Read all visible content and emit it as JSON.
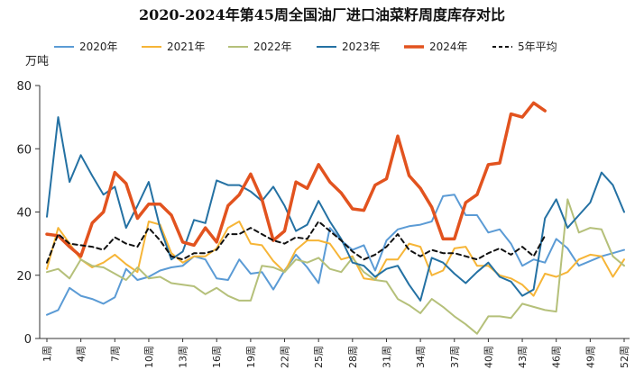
{
  "chart_data": {
    "type": "line",
    "title": "2020-2024年第45周全国油厂进口油菜籽周度库存对比",
    "ylabel": "万吨",
    "xlabel": "",
    "ylim": [
      0,
      80
    ],
    "yticks": [
      0,
      20,
      40,
      60,
      80
    ],
    "xlim": [
      1,
      52
    ],
    "xticks": [
      "1周",
      "4周",
      "7周",
      "10周",
      "13周",
      "16周",
      "19周",
      "22周",
      "25周",
      "28周",
      "31周",
      "34周",
      "37周",
      "40周",
      "43周",
      "46周",
      "49周",
      "52周"
    ],
    "xtick_values": [
      1,
      4,
      7,
      10,
      13,
      16,
      19,
      22,
      25,
      28,
      31,
      34,
      37,
      40,
      43,
      46,
      49,
      52
    ],
    "legend_position": "top",
    "grid": false,
    "series": [
      {
        "name": "2020年",
        "color": "#5b9bd5",
        "width": 2,
        "dash": "",
        "x": [
          1,
          2,
          3,
          4,
          5,
          6,
          7,
          8,
          9,
          10,
          11,
          12,
          13,
          14,
          15,
          16,
          17,
          18,
          19,
          20,
          21,
          22,
          23,
          24,
          25,
          26,
          27,
          28,
          29,
          30,
          31,
          32,
          33,
          34,
          35,
          36,
          37,
          38,
          39,
          40,
          41,
          42,
          43,
          44,
          45,
          46,
          47,
          48,
          49,
          50,
          51,
          52
        ],
        "values": [
          7.5,
          9,
          16,
          13.5,
          12.5,
          11,
          13,
          22,
          18.5,
          19.5,
          21.5,
          22.5,
          23,
          26,
          25,
          19,
          18.5,
          25,
          20.5,
          21,
          15.5,
          21.5,
          26.5,
          22.5,
          17.5,
          35,
          31,
          28,
          29.5,
          21.5,
          31,
          34.5,
          35.5,
          36,
          37,
          45,
          45.5,
          39,
          39,
          33.5,
          34.5,
          30,
          23,
          25,
          24,
          31.5,
          28.5,
          23,
          24.5,
          26,
          27,
          28
        ]
      },
      {
        "name": "2021年",
        "color": "#f6b537",
        "width": 2,
        "dash": "",
        "x": [
          1,
          2,
          3,
          4,
          5,
          6,
          7,
          8,
          9,
          10,
          11,
          12,
          13,
          14,
          15,
          16,
          17,
          18,
          19,
          20,
          21,
          22,
          23,
          24,
          25,
          26,
          27,
          28,
          29,
          30,
          31,
          32,
          33,
          34,
          35,
          36,
          37,
          38,
          39,
          40,
          41,
          42,
          43,
          44,
          45,
          46,
          47,
          48,
          49,
          50,
          51,
          52
        ],
        "values": [
          22,
          35,
          30,
          25,
          22.5,
          24,
          26.5,
          23.5,
          21,
          37,
          36,
          27,
          24,
          26,
          26,
          28.5,
          35,
          37,
          30,
          29.5,
          24.5,
          21,
          28,
          31,
          31,
          30,
          25,
          26,
          19,
          18.5,
          25,
          25,
          30,
          29,
          20,
          21.5,
          28.5,
          29,
          23,
          23,
          20,
          19,
          17,
          13.5,
          20.5,
          19.5,
          21,
          25,
          26.5,
          26,
          19.5,
          25
        ]
      },
      {
        "name": "2022年",
        "color": "#b5c07a",
        "width": 2,
        "dash": "",
        "x": [
          1,
          2,
          3,
          4,
          5,
          6,
          7,
          8,
          9,
          10,
          11,
          12,
          13,
          14,
          15,
          16,
          17,
          18,
          19,
          20,
          21,
          22,
          23,
          24,
          25,
          26,
          27,
          28,
          29,
          30,
          31,
          32,
          33,
          34,
          35,
          36,
          37,
          38,
          39,
          40,
          41,
          42,
          43,
          44,
          45,
          46,
          47,
          48,
          49,
          50,
          51,
          52
        ],
        "values": [
          21,
          22,
          19,
          25,
          23,
          22.5,
          20.5,
          18.5,
          22.5,
          19,
          19.5,
          17.5,
          17,
          16.5,
          14,
          16,
          13.5,
          12,
          12,
          23,
          22.5,
          21,
          25,
          24,
          25.5,
          22,
          21,
          25.5,
          21,
          18.5,
          18,
          12.5,
          10.5,
          8,
          12.5,
          10,
          7,
          4.5,
          1.5,
          7,
          7,
          6.5,
          11,
          10,
          9,
          8.5,
          44,
          33.5,
          35,
          34.5,
          26,
          23
        ]
      },
      {
        "name": "2023年",
        "color": "#2471a3",
        "width": 2,
        "dash": "",
        "x": [
          1,
          2,
          3,
          4,
          5,
          6,
          7,
          8,
          9,
          10,
          11,
          12,
          13,
          14,
          15,
          16,
          17,
          18,
          19,
          20,
          21,
          22,
          23,
          24,
          25,
          26,
          27,
          28,
          29,
          30,
          31,
          32,
          33,
          34,
          35,
          36,
          37,
          38,
          39,
          40,
          41,
          42,
          43,
          44,
          45,
          46,
          47,
          48,
          49,
          50,
          51,
          52
        ],
        "values": [
          38.5,
          70,
          49.5,
          58,
          51.5,
          45.5,
          48,
          35,
          42,
          49.5,
          35,
          25,
          27.5,
          37.5,
          36.5,
          50,
          48.5,
          48.5,
          46.5,
          43.5,
          48,
          42,
          34,
          36,
          43.5,
          37,
          31.5,
          24,
          23,
          19.5,
          22,
          23,
          17,
          12,
          25.5,
          24,
          20.5,
          17.5,
          21,
          24,
          19.5,
          18,
          13.5,
          15.5,
          38,
          44,
          35,
          39,
          43,
          52.5,
          48.5,
          40
        ]
      },
      {
        "name": "2024年",
        "color": "#e2531f",
        "width": 3.5,
        "dash": "",
        "x": [
          1,
          2,
          3,
          4,
          5,
          6,
          7,
          8,
          9,
          10,
          11,
          12,
          13,
          14,
          15,
          16,
          17,
          18,
          19,
          20,
          21,
          22,
          23,
          24,
          25,
          26,
          27,
          28,
          29,
          30,
          31,
          32,
          33,
          34,
          35,
          36,
          37,
          38,
          39,
          40,
          41,
          42,
          43,
          44,
          45
        ],
        "values": [
          33,
          32.5,
          29,
          26,
          36.5,
          40,
          52.5,
          49,
          38,
          42.5,
          42.5,
          39,
          30.5,
          29.5,
          35,
          30.5,
          42,
          45.5,
          52,
          44,
          31,
          34,
          49.5,
          47.5,
          55,
          49.5,
          46,
          41,
          40.5,
          48.5,
          50.5,
          64,
          51.5,
          47.5,
          41.5,
          31.5,
          31.5,
          43,
          45.5,
          55,
          55.5,
          71,
          70,
          74.5,
          72
        ]
      },
      {
        "name": "5年平均",
        "color": "#111111",
        "width": 2,
        "dash": "5,4",
        "x": [
          1,
          2,
          3,
          4,
          5,
          6,
          7,
          8,
          9,
          10,
          11,
          12,
          13,
          14,
          15,
          16,
          17,
          18,
          19,
          20,
          21,
          22,
          23,
          24,
          25,
          26,
          27,
          28,
          29,
          30,
          31,
          32,
          33,
          34,
          35,
          36,
          37,
          38,
          39,
          40,
          41,
          42,
          43,
          44,
          45
        ],
        "values": [
          24,
          33,
          30,
          29.5,
          29,
          28,
          32,
          30,
          29,
          35,
          31,
          26,
          25,
          27,
          27,
          28,
          33,
          33,
          35,
          33,
          31,
          30,
          32,
          31.5,
          37,
          34,
          31,
          27.5,
          25,
          26.5,
          29,
          33,
          28,
          26,
          28,
          27,
          27,
          26,
          25,
          27,
          28.5,
          26.5,
          29,
          26,
          32.5
        ]
      }
    ]
  }
}
